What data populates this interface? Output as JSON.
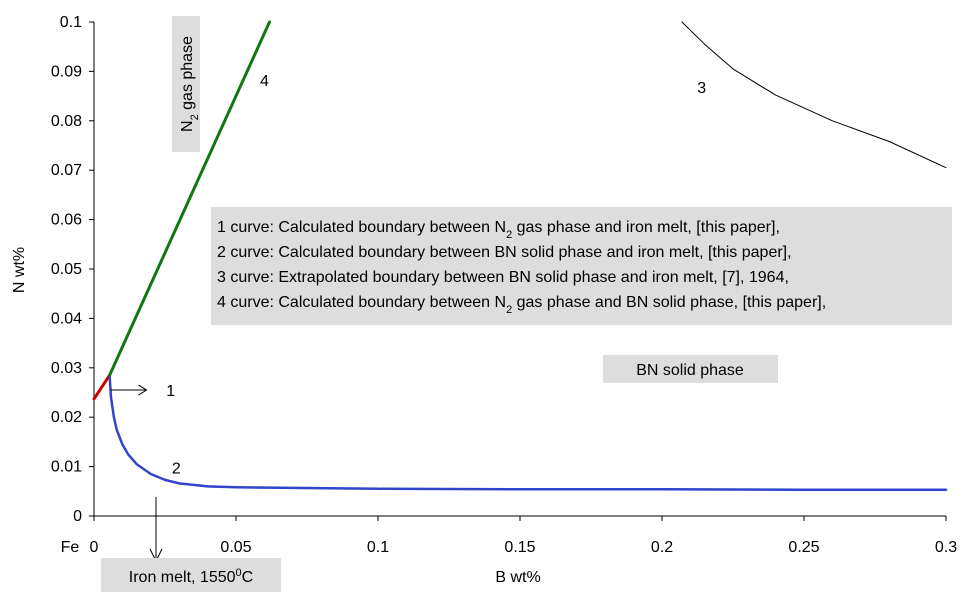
{
  "chart_data": {
    "type": "line",
    "xlabel": "B wt%",
    "ylabel": "N wt%",
    "xlim": [
      0,
      0.3
    ],
    "ylim": [
      0,
      0.1
    ],
    "x_ticks": [
      "0",
      "0.05",
      "0.1",
      "0.15",
      "0.2",
      "0.25",
      "0.3"
    ],
    "y_ticks": [
      "0",
      "0.01",
      "0.02",
      "0.03",
      "0.04",
      "0.05",
      "0.06",
      "0.07",
      "0.08",
      "0.09",
      "0.1"
    ],
    "origin_label": "Fe",
    "grid": false,
    "series": [
      {
        "label_number": "1",
        "color": "#cc0000",
        "points": [
          [
            0,
            0.0237
          ],
          [
            0.0055,
            0.0285
          ]
        ]
      },
      {
        "label_number": "2",
        "color": "#3344cc",
        "points": [
          [
            0.0055,
            0.0285
          ],
          [
            0.006,
            0.024
          ],
          [
            0.007,
            0.02
          ],
          [
            0.008,
            0.0175
          ],
          [
            0.01,
            0.0145
          ],
          [
            0.012,
            0.0125
          ],
          [
            0.015,
            0.0105
          ],
          [
            0.02,
            0.0085
          ],
          [
            0.025,
            0.0073
          ],
          [
            0.03,
            0.0066
          ],
          [
            0.04,
            0.006
          ],
          [
            0.05,
            0.0058
          ],
          [
            0.1,
            0.0055
          ],
          [
            0.15,
            0.0054
          ],
          [
            0.2,
            0.0054
          ],
          [
            0.25,
            0.0053
          ],
          [
            0.3,
            0.0053
          ]
        ]
      },
      {
        "label_number": "3",
        "color": "#000000",
        "points": [
          [
            0.207,
            0.1
          ],
          [
            0.215,
            0.0955
          ],
          [
            0.225,
            0.0905
          ],
          [
            0.24,
            0.0852
          ],
          [
            0.26,
            0.08
          ],
          [
            0.28,
            0.0758
          ],
          [
            0.3,
            0.0705
          ]
        ]
      },
      {
        "label_number": "4",
        "color": "#117711",
        "points": [
          [
            0.0055,
            0.0285
          ],
          [
            0.0618,
            0.1
          ]
        ]
      }
    ],
    "curve_labels": [
      {
        "text": "1",
        "x": 0.027,
        "y": 0.0255,
        "arrow": true
      },
      {
        "text": "2",
        "x": 0.029,
        "y": 0.0098
      },
      {
        "text": "3",
        "x": 0.214,
        "y": 0.0868
      },
      {
        "text": "4",
        "x": 0.06,
        "y": 0.0883
      }
    ],
    "phase_labels": {
      "gas_main": "N",
      "gas_sub": "2",
      "gas_rest": " gas phase",
      "solid": "BN solid phase",
      "melt_main": "Iron melt, 1550",
      "melt_sup": "0",
      "melt_rest": "C"
    },
    "legend": [
      {
        "a": "1 curve: Calculated boundary between N",
        "sub": "2",
        "b": " gas phase and iron melt, [this paper],"
      },
      {
        "a": "2 curve: Calculated boundary between BN solid phase and iron melt, [this paper],",
        "sub": "",
        "b": ""
      },
      {
        "a": "3 curve: Extrapolated boundary between BN solid phase and iron melt, [7], 1964,",
        "sub": "",
        "b": ""
      },
      {
        "a": "4 curve: Calculated boundary between N",
        "sub": "2",
        "b": " gas phase and BN solid phase, [this paper],"
      }
    ]
  }
}
